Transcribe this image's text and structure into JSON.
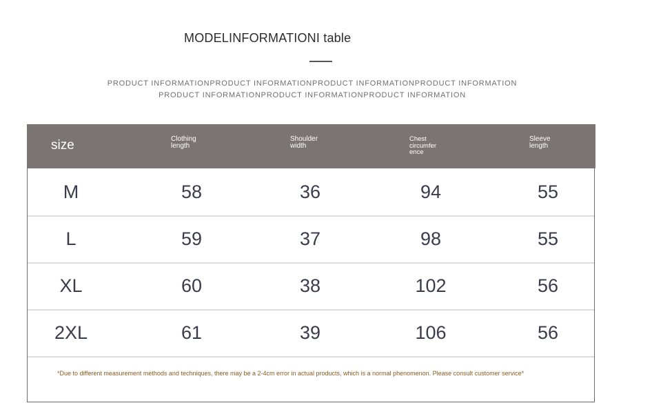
{
  "title": "MODELINFORMATIONI table",
  "subheading_line1": "PRODUCT INFORMATIONPRODUCT INFORMATIONPRODUCT INFORMATIONPRODUCT INFORMATION",
  "subheading_line2": "PRODUCT INFORMATIONPRODUCT INFORMATIONPRODUCT INFORMATION",
  "table": {
    "headers": {
      "size": "size",
      "h1": [
        "Clothing",
        "length"
      ],
      "h2": [
        "Shoulder",
        "width"
      ],
      "h3": [
        "Chest",
        "circumfer",
        "ence"
      ],
      "h4": [
        "Sleeve",
        "length"
      ]
    },
    "rows": [
      [
        "M",
        "58",
        "36",
        "94",
        "55"
      ],
      [
        "L",
        "59",
        "37",
        "98",
        "55"
      ],
      [
        "XL",
        "60",
        "38",
        "102",
        "56"
      ],
      [
        "2XL",
        "61",
        "39",
        "106",
        "56"
      ]
    ]
  },
  "note": "*Due to different measurement methods and techniques, there may be a 2-4cm error in actual products, which is a normal phenomenon. Please consult customer service*",
  "colors": {
    "header_bg": "#7a7574",
    "cell_text": "#3b3b4e",
    "note_text": "#8a5a1c"
  }
}
